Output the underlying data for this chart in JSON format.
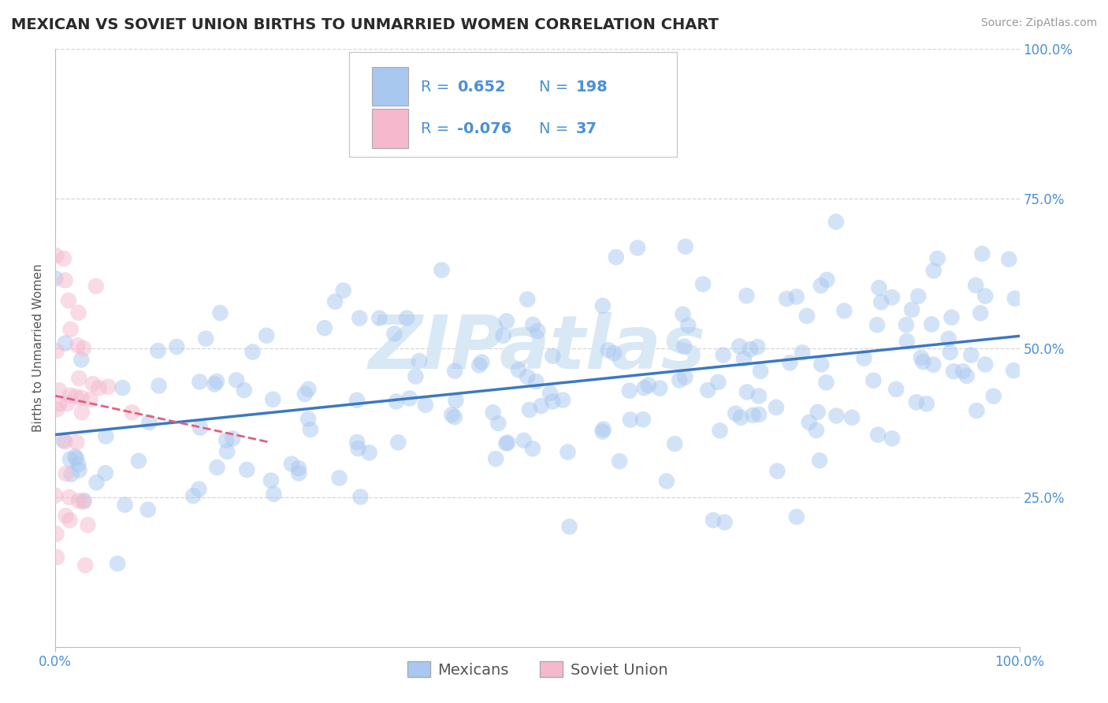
{
  "title": "MEXICAN VS SOVIET UNION BIRTHS TO UNMARRIED WOMEN CORRELATION CHART",
  "source": "Source: ZipAtlas.com",
  "xlabel_blue": "Mexicans",
  "xlabel_pink": "Soviet Union",
  "ylabel": "Births to Unmarried Women",
  "r_blue": 0.652,
  "n_blue": 198,
  "r_pink": -0.076,
  "n_pink": 37,
  "xlim": [
    0,
    1
  ],
  "ylim": [
    0,
    1
  ],
  "blue_color": "#A8C8F0",
  "blue_line_color": "#3B78C3",
  "pink_color": "#F5B8CC",
  "pink_line_color": "#E06080",
  "tick_color": "#4A90D9",
  "watermark_color": "#D8E8F5",
  "title_fontsize": 14,
  "axis_label_fontsize": 11,
  "tick_fontsize": 12,
  "legend_fontsize": 14,
  "source_fontsize": 10,
  "dot_size": 220,
  "dot_alpha": 0.5,
  "grid_color": "#CCCCCC",
  "background_color": "#FFFFFF",
  "blue_slope": 0.165,
  "blue_intercept": 0.355,
  "pink_slope": -0.35,
  "pink_intercept": 0.42
}
